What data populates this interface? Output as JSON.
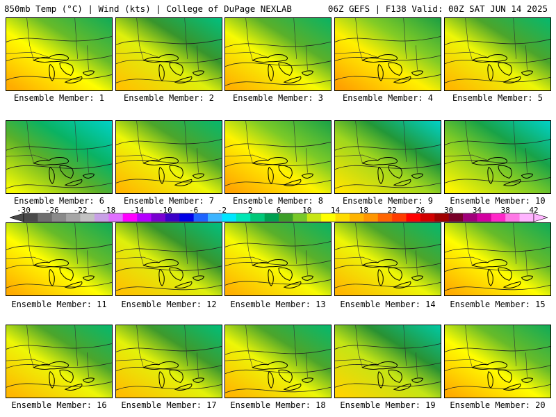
{
  "header": {
    "left": "850mb Temp (°C) | Wind (kts) | College of DuPage NEXLAB",
    "right": "06Z GEFS | F138 Valid: 00Z SAT JUN 14 2025"
  },
  "panel_label_prefix": "Ensemble Member: ",
  "members": [
    {
      "label": "Ensemble Member: 1",
      "warmth": 0.62
    },
    {
      "label": "Ensemble Member: 2",
      "warmth": 0.55
    },
    {
      "label": "Ensemble Member: 3",
      "warmth": 0.6
    },
    {
      "label": "Ensemble Member: 4",
      "warmth": 0.66
    },
    {
      "label": "Ensemble Member: 5",
      "warmth": 0.58
    },
    {
      "label": "Ensemble Member: 6",
      "warmth": 0.35
    },
    {
      "label": "Ensemble Member: 7",
      "warmth": 0.58
    },
    {
      "label": "Ensemble Member: 8",
      "warmth": 0.65
    },
    {
      "label": "Ensemble Member: 9",
      "warmth": 0.45
    },
    {
      "label": "Ensemble Member: 10",
      "warmth": 0.4
    },
    {
      "label": "Ensemble Member: 11",
      "warmth": 0.62
    },
    {
      "label": "Ensemble Member: 12",
      "warmth": 0.55
    },
    {
      "label": "Ensemble Member: 13",
      "warmth": 0.6
    },
    {
      "label": "Ensemble Member: 14",
      "warmth": 0.58
    },
    {
      "label": "Ensemble Member: 15",
      "warmth": 0.62
    },
    {
      "label": "Ensemble Member: 16",
      "warmth": 0.58
    },
    {
      "label": "Ensemble Member: 17",
      "warmth": 0.56
    },
    {
      "label": "Ensemble Member: 18",
      "warmth": 0.58
    },
    {
      "label": "Ensemble Member: 19",
      "warmth": 0.5
    },
    {
      "label": "Ensemble Member: 20",
      "warmth": 0.62
    }
  ],
  "colorbar": {
    "tick_labels": [
      "-30",
      "-26",
      "-22",
      "-18",
      "-14",
      "-10",
      "-6",
      "-2",
      "2",
      "6",
      "10",
      "14",
      "18",
      "22",
      "26",
      "30",
      "34",
      "38",
      "42"
    ],
    "colors": [
      "#4a4a4a",
      "#6e6e6e",
      "#8a8a8a",
      "#a6a6a6",
      "#c2c2c2",
      "#c8a0e6",
      "#e070ff",
      "#ff00ff",
      "#b400ff",
      "#7800d0",
      "#3c00c8",
      "#0000e6",
      "#1e64ff",
      "#3cb4ff",
      "#00e6ff",
      "#00e6b4",
      "#00c878",
      "#00a050",
      "#3c9e28",
      "#78c828",
      "#c8e614",
      "#ffff00",
      "#ffdc00",
      "#ffb400",
      "#ff9600",
      "#ff6400",
      "#ff3c00",
      "#ff0000",
      "#d20000",
      "#a00000",
      "#780028",
      "#a0007a",
      "#d200a0",
      "#ff28c8",
      "#ff78e6",
      "#ffb4ff"
    ]
  }
}
